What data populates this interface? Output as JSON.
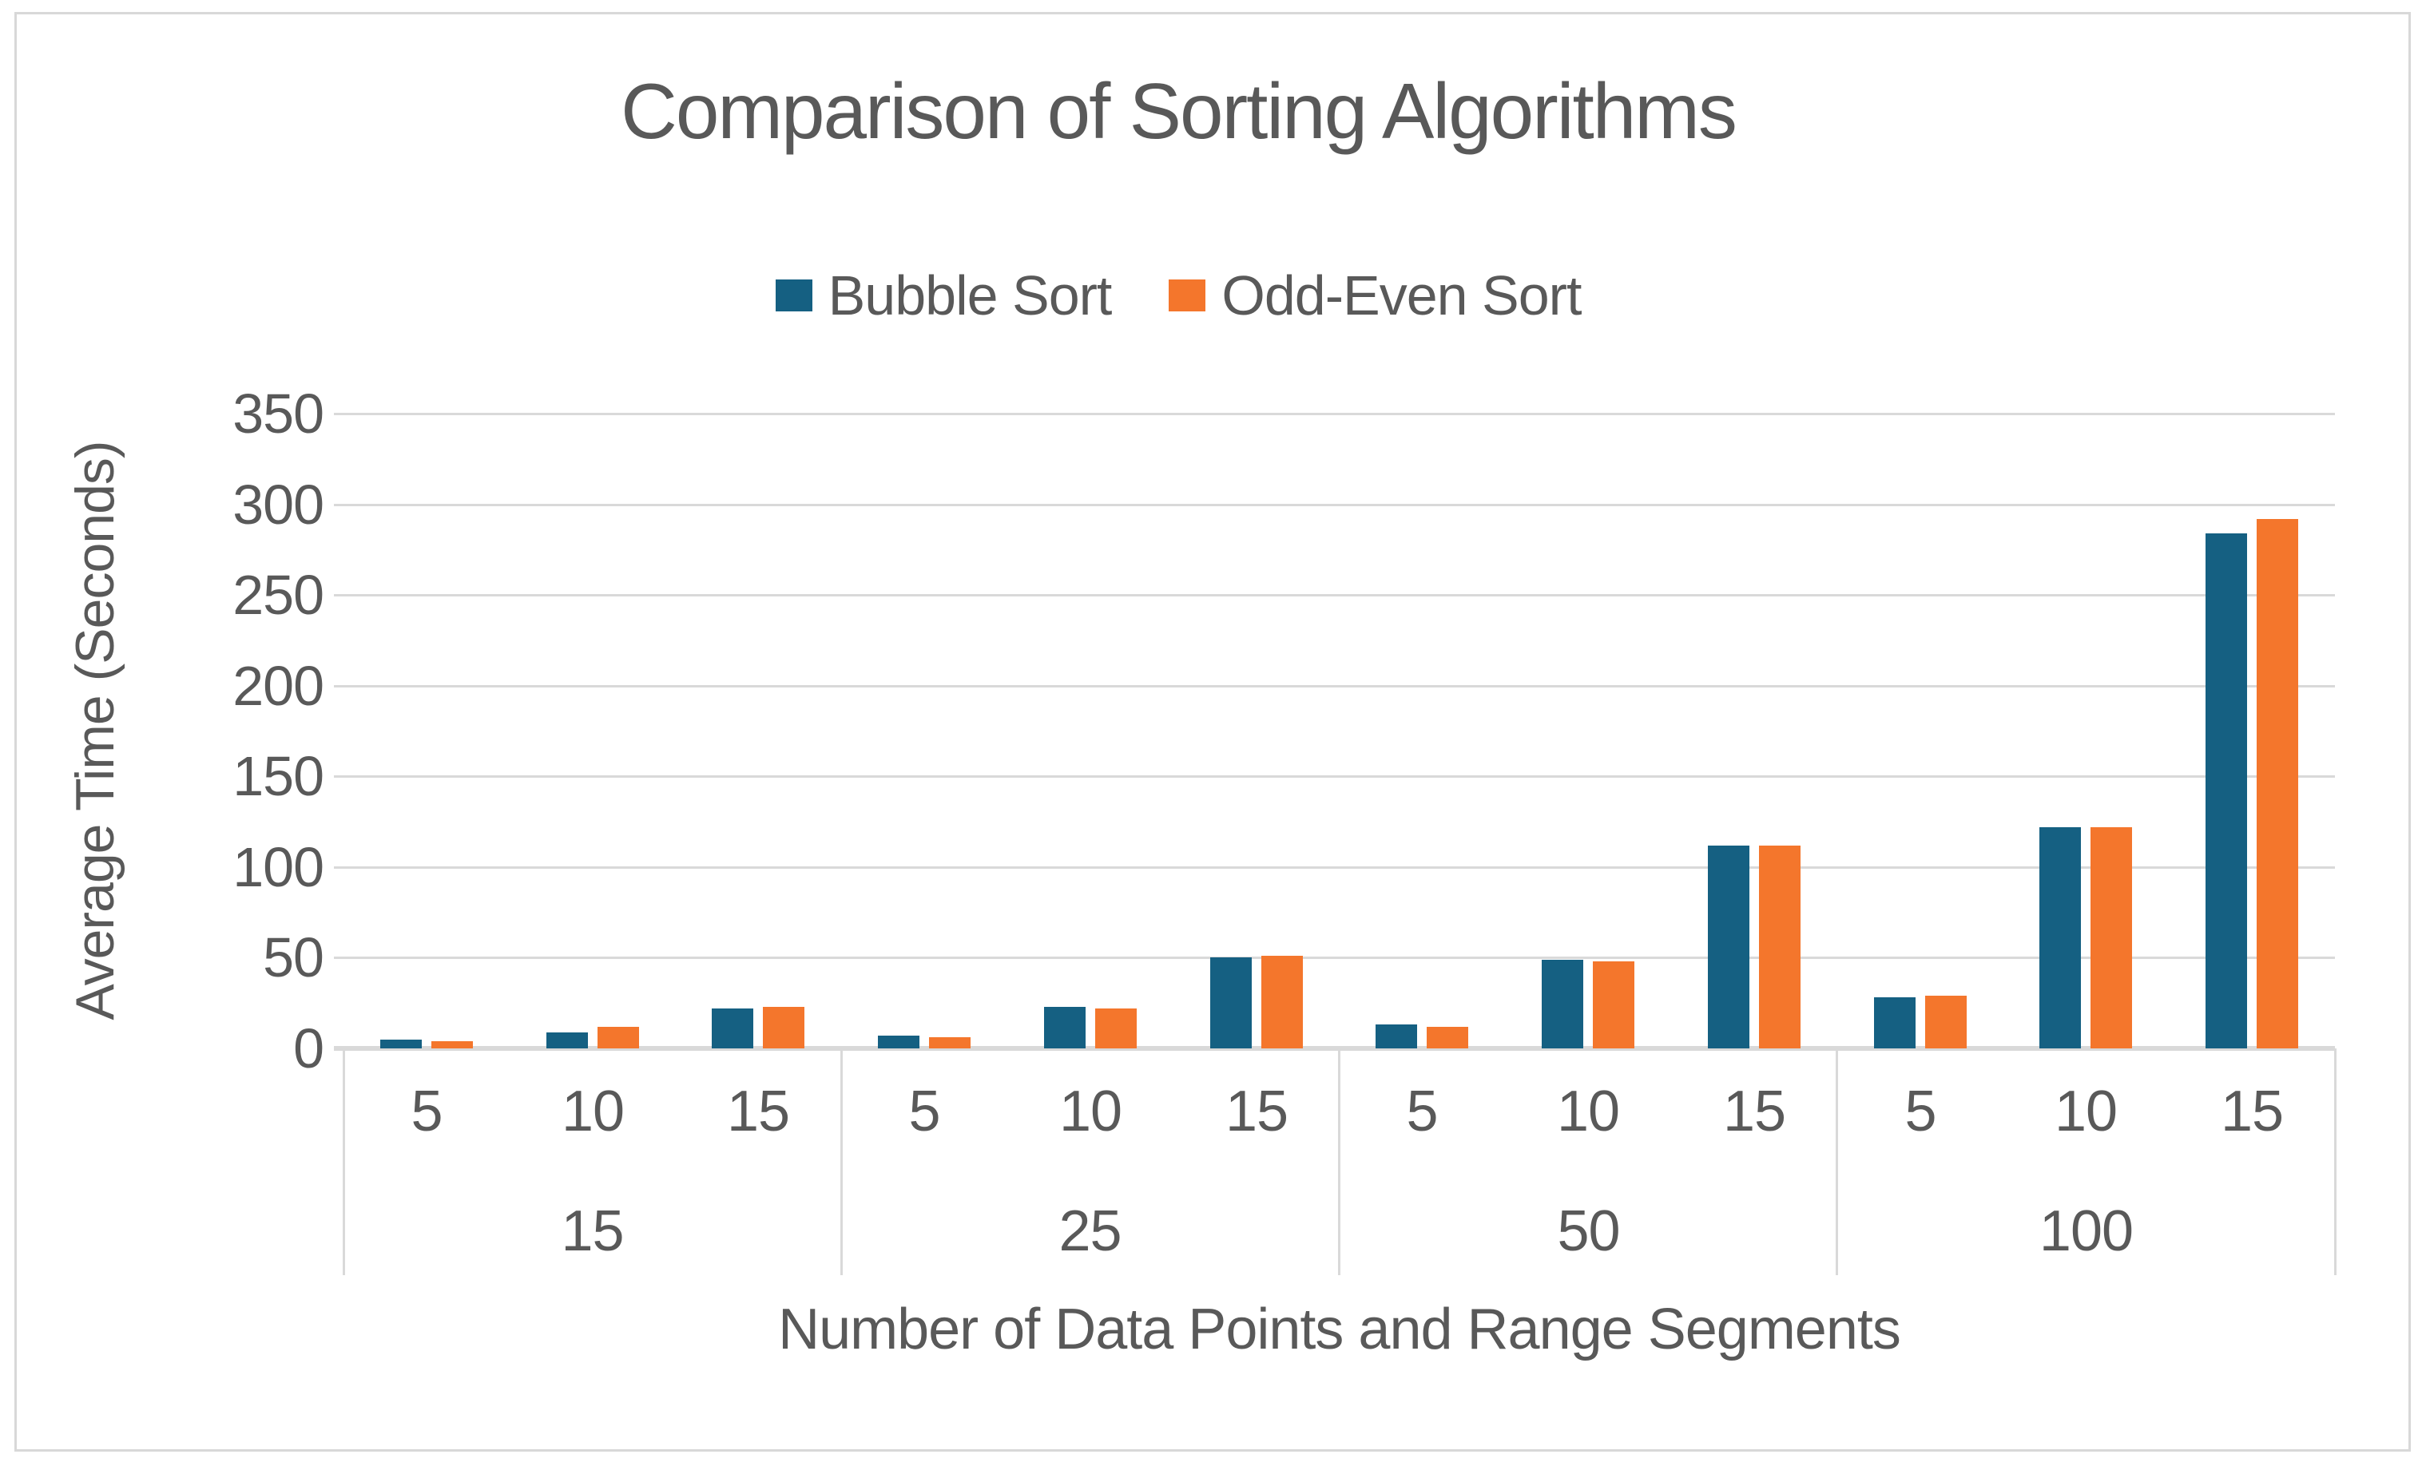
{
  "window": {
    "background": "#ffffff",
    "frame_border_color": "#d8d8d8"
  },
  "colors": {
    "bubble_sort": "#156082",
    "odd_even_sort": "#F4762C",
    "gridline": "#d9d9d9",
    "text": "#595959"
  },
  "chart_data": {
    "type": "bar",
    "title": "Comparison of Sorting Algorithms",
    "x_axis_title": "Number of Data Points and Range Segments",
    "y_axis_title": "Average Time (Seconds)",
    "legend_position": "top-center",
    "grid": true,
    "ylim": [
      0,
      350
    ],
    "y_ticks": [
      0,
      50,
      100,
      150,
      200,
      250,
      300,
      350
    ],
    "group_labels": [
      "15",
      "25",
      "50",
      "100"
    ],
    "sub_labels": [
      "5",
      "10",
      "15"
    ],
    "series": [
      {
        "name": "Bubble Sort",
        "color": "#156082",
        "values": [
          5,
          9,
          22,
          7,
          23,
          50,
          13,
          49,
          112,
          28,
          122,
          284
        ]
      },
      {
        "name": "Odd-Even Sort",
        "color": "#F4762C",
        "values": [
          4,
          12,
          23,
          6,
          22,
          51,
          12,
          48,
          112,
          29,
          122,
          292
        ]
      }
    ]
  }
}
